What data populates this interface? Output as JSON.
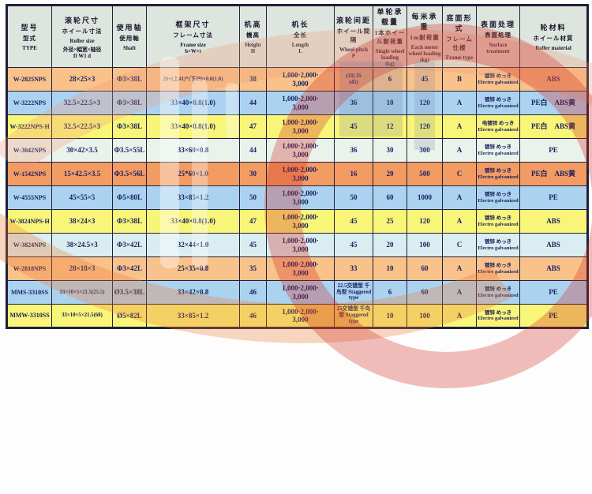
{
  "table": {
    "headers": [
      {
        "lines": [
          "型号",
          "型式",
          "TYPE"
        ]
      },
      {
        "lines": [
          "滚轮尺寸",
          "ホイール寸法",
          "Roller size",
          "外径×幅宽×轴径",
          "D W1 d"
        ]
      },
      {
        "lines": [
          "使用轴",
          "使用軸",
          "Shaft"
        ]
      },
      {
        "lines": [
          "框架尺寸",
          "フレーム寸法",
          "Frame size",
          "h×W×t"
        ]
      },
      {
        "lines": [
          "机高",
          "機高",
          "Height",
          "H"
        ]
      },
      {
        "lines": [
          "机长",
          "全长",
          "Length",
          "L"
        ]
      },
      {
        "lines": [
          "滚轮间距",
          "ホイール間隔",
          "Wheel pitch",
          "P"
        ]
      },
      {
        "lines": [
          "单轮承载量",
          "1本ホイール耐荷重",
          "Single wheel loading",
          "(kg)"
        ]
      },
      {
        "lines": [
          "每米承重",
          "1m耐荷重",
          "Each meter wheel loading",
          "(kg)"
        ]
      },
      {
        "lines": [
          "底面形式",
          "フレーム仕様",
          "Frame type"
        ]
      },
      {
        "lines": [
          "表面处理",
          "表面処理",
          "Surface treatment"
        ]
      },
      {
        "lines": [
          "轮材料",
          "ホイール材質",
          "Roller material"
        ]
      }
    ],
    "rows": [
      {
        "type": "W-2825NPS",
        "roller": "28×25×3",
        "shaft": "Φ3×38L",
        "frame": "26+(上41)*(下29)×0.8(1.0)",
        "height": "38",
        "length": "1,000·2,000·\n3,000",
        "pitch": "(33) 35\n(45)",
        "single": "6",
        "meter": "45",
        "frame_type": "B",
        "surface_zh": "镀锌 めっき",
        "surface_en": "Electro galvanized",
        "material": "ABS",
        "bg": "#f9c28a"
      },
      {
        "type": "W-3222NPS",
        "roller": "32.5×22.5×3",
        "shaft": "Φ3×38L",
        "frame": "33×40×0.8(1.0)",
        "height": "44",
        "length": "1,000·2,000·\n3,000",
        "pitch": "36",
        "single": "10",
        "meter": "120",
        "frame_type": "A",
        "surface_zh": "镀锌 めっき",
        "surface_en": "Electro galvanized",
        "material": "PE白　ABS黄",
        "bg": "#abd3f0"
      },
      {
        "type": "W-3222NPS-H",
        "roller": "32.5×22.5×3",
        "shaft": "Φ3×38L",
        "frame": "33×40×0.8(1.0)",
        "height": "47",
        "length": "1,000·2,000·\n3,000",
        "pitch": "45",
        "single": "12",
        "meter": "120",
        "frame_type": "A",
        "surface_zh": "电镀锌 めっき",
        "surface_en": "Electro galvanized",
        "material": "PE白　ABS黄",
        "bg": "#f8f578"
      },
      {
        "type": "W-3042NPS",
        "roller": "30×42×3.5",
        "shaft": "Φ3.5×55L",
        "frame": "33×60×0.8",
        "height": "44",
        "length": "1,000·2,000·\n3,000",
        "pitch": "36",
        "single": "30",
        "meter": "300",
        "frame_type": "A",
        "surface_zh": "镀锌 めっき",
        "surface_en": "Electro galvanized",
        "material": "PE",
        "bg": "#e9f3ec"
      },
      {
        "type": "W-1542NPS",
        "roller": "15×42.5×3.5",
        "shaft": "Φ3.5×56L",
        "frame": "25*60×1.0",
        "height": "30",
        "length": "1,000·2,000·\n3,000",
        "pitch": "16",
        "single": "20",
        "meter": "500",
        "frame_type": "C",
        "surface_zh": "镀锌 めっき",
        "surface_en": "Electro galvanized",
        "material": "PE白　ABS黄",
        "bg": "#f29b63"
      },
      {
        "type": "W-4555NPS",
        "roller": "45×55×5",
        "shaft": "Φ5×80L",
        "frame": "33×85×1.2",
        "height": "50",
        "length": "1,000·2,000·\n3,000",
        "pitch": "50",
        "single": "60",
        "meter": "1000",
        "frame_type": "A",
        "surface_zh": "镀锌 めっき",
        "surface_en": "Electro galvanized",
        "material": "PE",
        "bg": "#abd3f0"
      },
      {
        "type": "W-3824NPS-H",
        "roller": "38×24×3",
        "shaft": "Φ3×38L",
        "frame": "33×40×0.8(1.0)",
        "height": "47",
        "length": "1,000·2,000·\n3,000",
        "pitch": "45",
        "single": "25",
        "meter": "120",
        "frame_type": "A",
        "surface_zh": "镀锌 めっき",
        "surface_en": "Electro galvanized",
        "material": "ABS",
        "bg": "#f8f578"
      },
      {
        "type": "W-3824NPS",
        "roller": "38×24.5×3",
        "shaft": "Φ3×42L",
        "frame": "32×44×1.0",
        "height": "45",
        "length": "1,000·2,000·\n3,000",
        "pitch": "45",
        "single": "20",
        "meter": "100",
        "frame_type": "C",
        "surface_zh": "镀锌 めっき",
        "surface_en": "Electro galvanized",
        "material": "ABS",
        "bg": "#daedf0"
      },
      {
        "type": "W-2818NPS",
        "roller": "28×18×3",
        "shaft": "Φ3×42L",
        "frame": "25×35×0.8",
        "height": "35",
        "length": "1,000·2,000·\n3,000",
        "pitch": "33",
        "single": "10",
        "meter": "60",
        "frame_type": "A",
        "surface_zh": "镀锌 めっき",
        "surface_en": "Electro galvanized",
        "material": "ABS",
        "bg": "#f9c28a"
      },
      {
        "type": "MMS-3310SS",
        "roller": "33×10×5×21.5(25.5)",
        "shaft": "Ø3.5×38L",
        "frame": "33×42×0.8",
        "height": "46",
        "length": "1,000·2,000·\n3,000",
        "pitch": "22.5交错型 千鸟型 Staggered type",
        "single": "6",
        "meter": "60",
        "frame_type": "A",
        "surface_zh": "镀锌 めっき",
        "surface_en": "Electro galvanized",
        "material": "PE",
        "bg": "#abd3f0"
      },
      {
        "type": "MMW-3310SS",
        "roller": "33×10×5×21.5(68)",
        "shaft": "Ø5×82L",
        "frame": "33×85×1.2",
        "height": "46",
        "length": "1,000·2,000·\n3,000",
        "pitch": "25交错型 千鸟型 Staggered type",
        "single": "10",
        "meter": "100",
        "frame_type": "A",
        "surface_zh": "镀锌 めっき",
        "surface_en": "Electro galvanized",
        "material": "PE",
        "bg": "#f8f578"
      }
    ]
  },
  "colors": {
    "border": "#20203a",
    "header_bg": "#dee5de",
    "data_text": "#1a2060",
    "watermark_red": "#d0281e",
    "watermark_orange": "#ee7a32"
  }
}
